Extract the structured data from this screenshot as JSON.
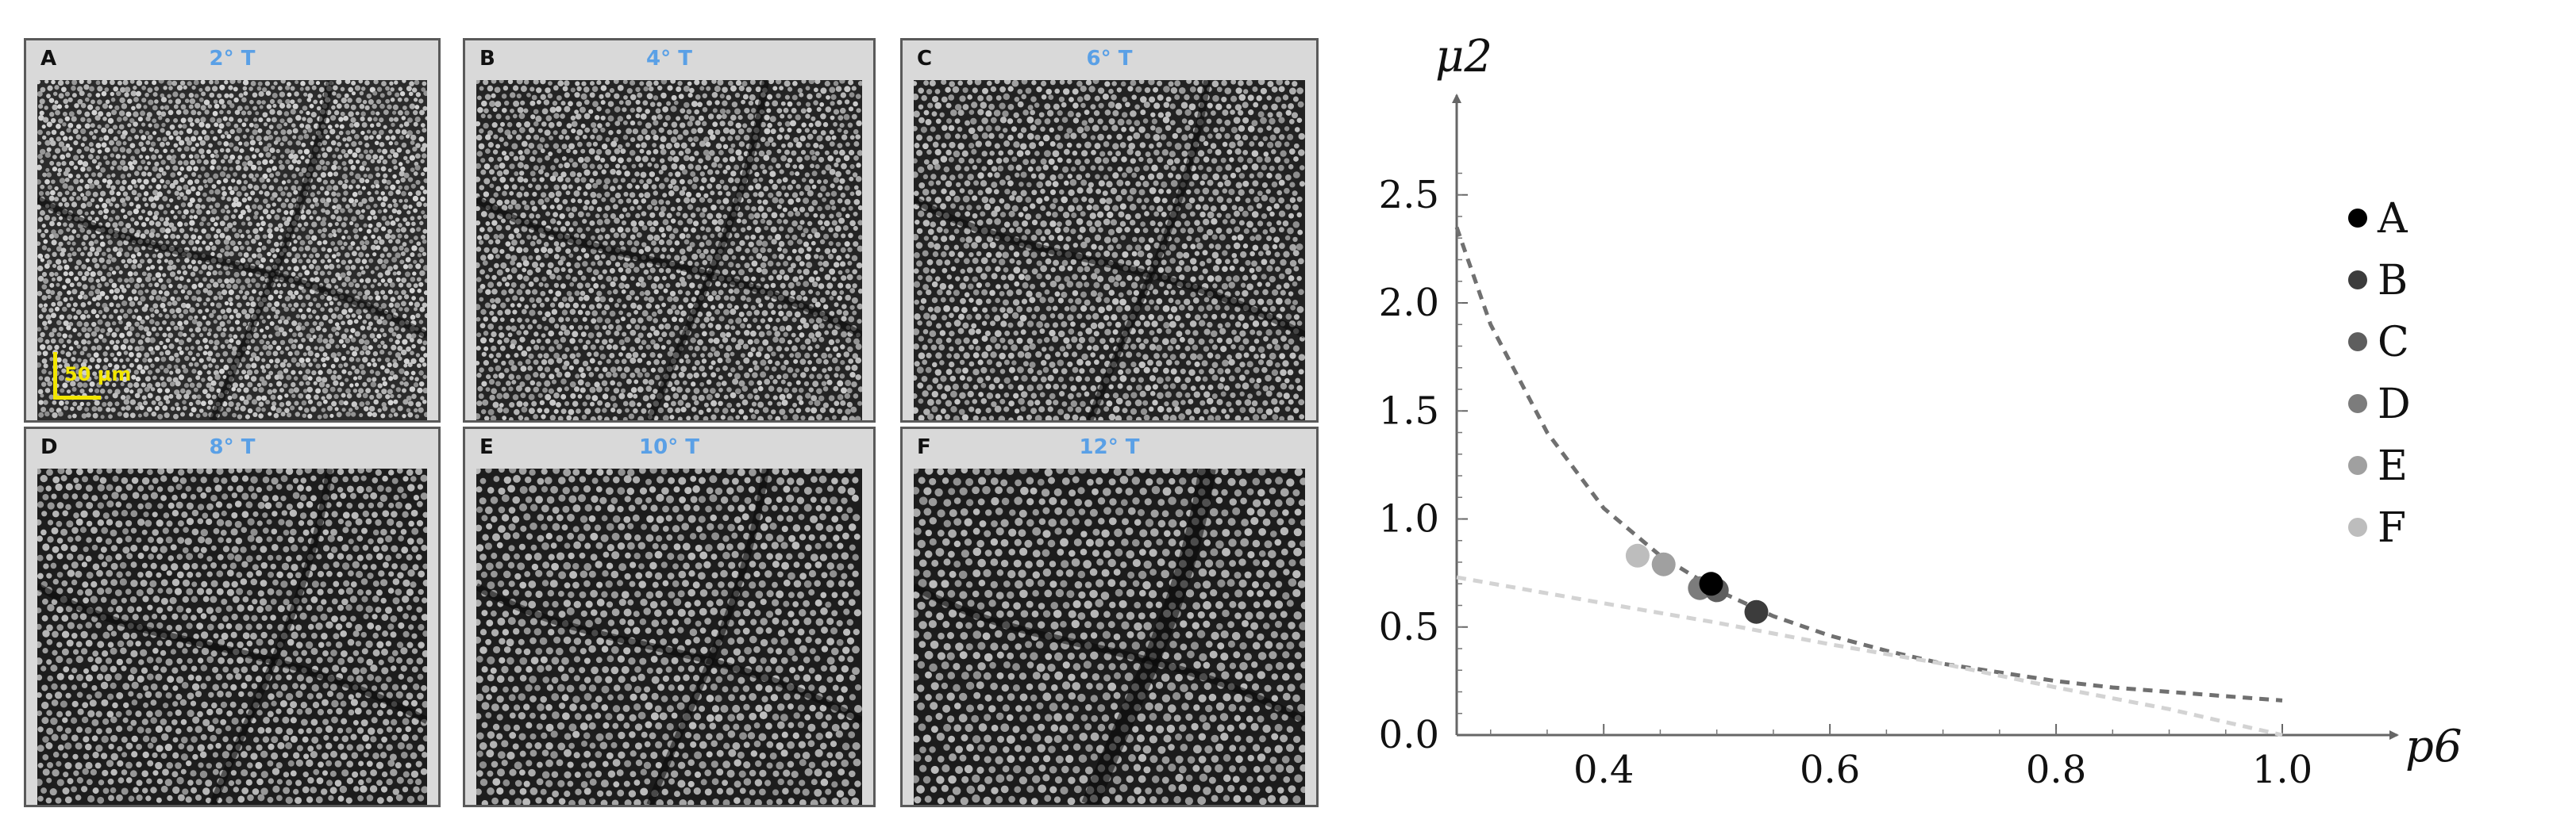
{
  "figure": {
    "panels": [
      {
        "letter": "A",
        "eccentricity": "2° T",
        "tone": 0.62
      },
      {
        "letter": "B",
        "eccentricity": "4° T",
        "tone": 0.52
      },
      {
        "letter": "C",
        "eccentricity": "6° T",
        "tone": 0.48
      },
      {
        "letter": "D",
        "eccentricity": "8° T",
        "tone": 0.42
      },
      {
        "letter": "E",
        "eccentricity": "10° T",
        "tone": 0.42
      },
      {
        "letter": "F",
        "eccentricity": "12° T",
        "tone": 0.4
      }
    ],
    "scale_bar_label": "50 μm",
    "scale_bar_color": "#f2e600",
    "eccentricity_color": "#5aa0e6"
  },
  "chart_data": {
    "type": "scatter",
    "xlabel": "p6",
    "ylabel": "μ2",
    "xlim": [
      0.27,
      1.0
    ],
    "ylim": [
      0.0,
      2.8
    ],
    "xticks": [
      0.4,
      0.6,
      0.8,
      1.0
    ],
    "xtick_labels": [
      "0.4",
      "0.6",
      "0.8",
      "1.0"
    ],
    "yticks": [
      0.0,
      0.5,
      1.0,
      1.5,
      2.0,
      2.5
    ],
    "ytick_labels": [
      "0.0",
      "0.5",
      "1.0",
      "1.5",
      "2.0",
      "2.5"
    ],
    "legend_position": "top-right",
    "series": [
      {
        "name": "A",
        "x": 0.495,
        "y": 0.7,
        "color": "#000000"
      },
      {
        "name": "B",
        "x": 0.535,
        "y": 0.57,
        "color": "#3c3c3c"
      },
      {
        "name": "C",
        "x": 0.5,
        "y": 0.67,
        "color": "#5e5e5e"
      },
      {
        "name": "D",
        "x": 0.485,
        "y": 0.68,
        "color": "#7c7c7c"
      },
      {
        "name": "E",
        "x": 0.453,
        "y": 0.79,
        "color": "#a0a0a0"
      },
      {
        "name": "F",
        "x": 0.43,
        "y": 0.83,
        "color": "#bdbdbd"
      }
    ],
    "curves": [
      {
        "style": "dashed",
        "color": "#707070",
        "x": [
          0.27,
          0.3,
          0.35,
          0.4,
          0.45,
          0.5,
          0.55,
          0.6,
          0.65,
          0.7,
          0.75,
          0.8,
          0.85,
          0.9,
          0.95,
          1.0
        ],
        "y": [
          2.35,
          1.9,
          1.4,
          1.05,
          0.83,
          0.67,
          0.55,
          0.46,
          0.39,
          0.33,
          0.29,
          0.25,
          0.22,
          0.2,
          0.18,
          0.16
        ]
      },
      {
        "style": "dashed",
        "color": "#d3d3d3",
        "x": [
          0.27,
          0.4,
          0.5,
          0.6,
          0.7,
          0.8,
          0.9,
          1.0
        ],
        "y": [
          0.73,
          0.61,
          0.52,
          0.42,
          0.33,
          0.22,
          0.12,
          0.0
        ]
      }
    ]
  }
}
